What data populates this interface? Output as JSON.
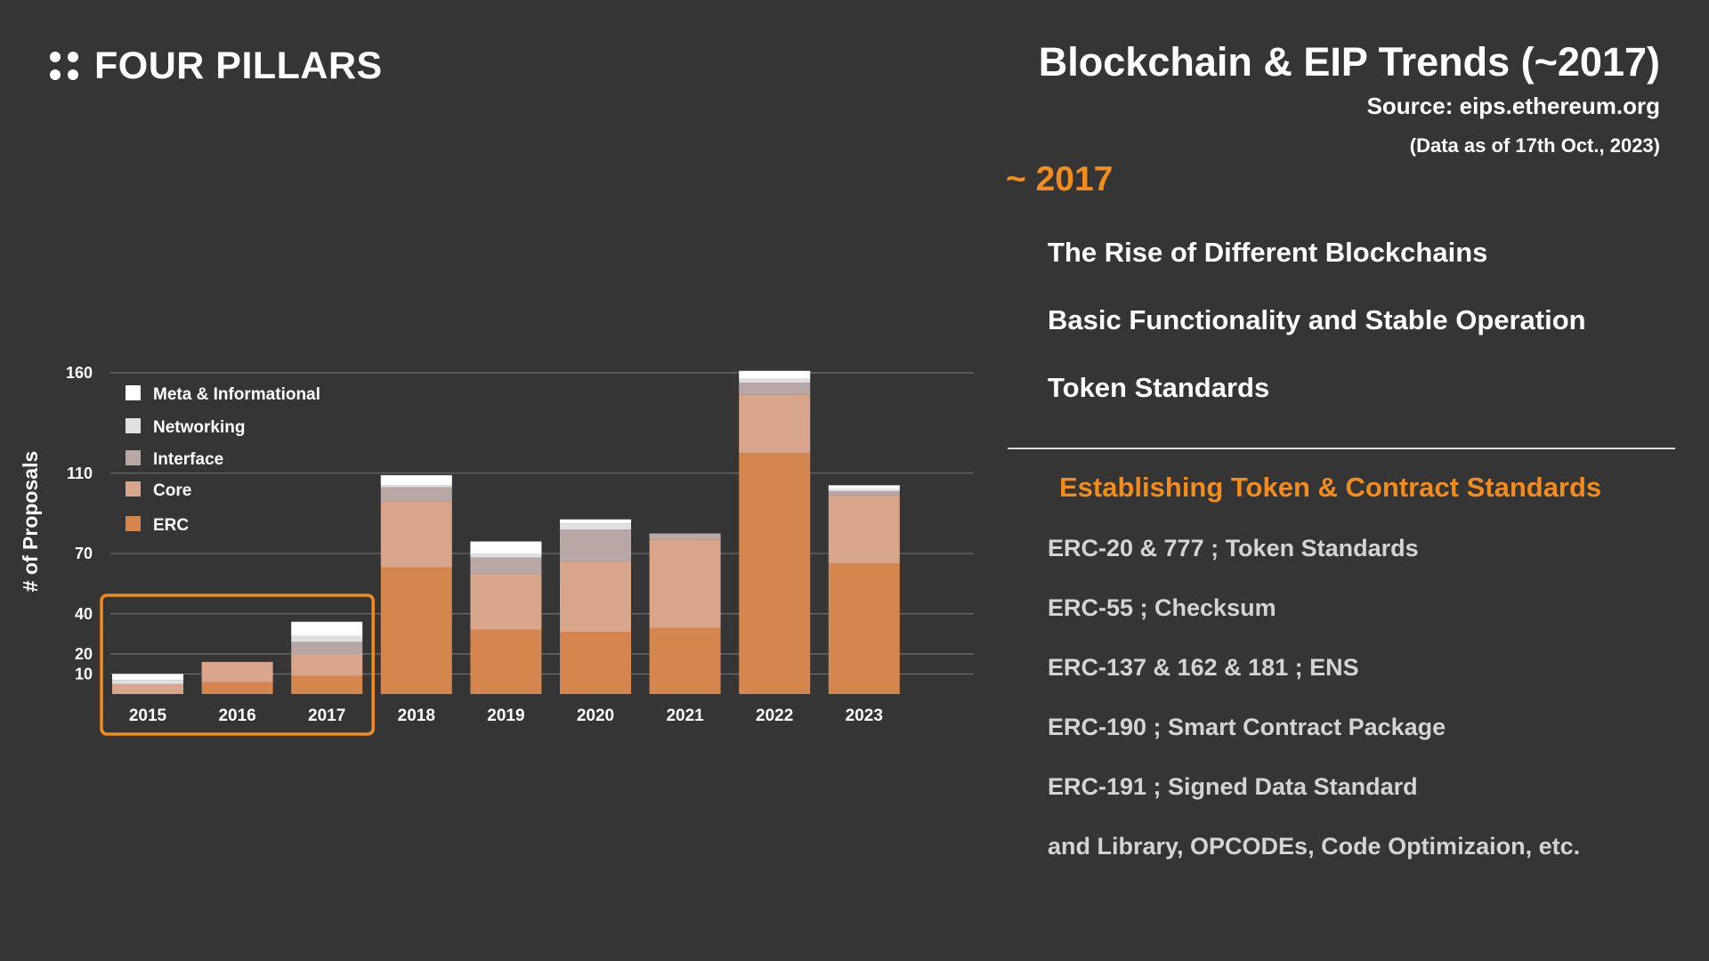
{
  "header": {
    "brand": "FOUR PILLARS",
    "title": "Blockchain & EIP Trends (~2017)",
    "source": "Source: eips.ethereum.org",
    "as_of": "(Data as of 17th Oct., 2023)"
  },
  "era": {
    "label": "~ 2017",
    "themes": [
      "The Rise of Different Blockchains",
      "Basic Functionality and Stable Operation",
      "Token Standards"
    ]
  },
  "standards": {
    "heading": "Establishing Token & Contract Standards",
    "items": [
      "ERC-20 & 777 ; Token Standards",
      "ERC-55 ; Checksum",
      "ERC-137 & 162 & 181 ; ENS",
      "ERC-190 ; Smart Contract Package",
      "ERC-191 ; Signed Data Standard",
      "and Library, OPCODEs, Code Optimizaion, etc."
    ]
  },
  "colors": {
    "highlight": "#f28c1c",
    "background": "#353535"
  },
  "chart_data": {
    "type": "bar",
    "stacked": true,
    "ylabel": "# of Proposals",
    "yticks": [
      10,
      20,
      40,
      70,
      110,
      160
    ],
    "ylim": [
      0,
      160
    ],
    "grid": true,
    "legend": "top-left",
    "categories": [
      "2015",
      "2016",
      "2017",
      "2018",
      "2019",
      "2020",
      "2021",
      "2022",
      "2023"
    ],
    "highlight_categories": [
      "2015",
      "2016",
      "2017"
    ],
    "series": [
      {
        "name": "ERC",
        "color": "#d4864e",
        "values": [
          0,
          6,
          9,
          63,
          32,
          31,
          33,
          120,
          65
        ]
      },
      {
        "name": "Core",
        "color": "#d9a68b",
        "values": [
          5,
          10,
          11,
          33,
          28,
          35,
          44,
          29,
          34
        ]
      },
      {
        "name": "Interface",
        "color": "#b8a7a4",
        "values": [
          0,
          0,
          6,
          7,
          8,
          16,
          3,
          6,
          2
        ]
      },
      {
        "name": "Networking",
        "color": "#e0e0e0",
        "values": [
          2,
          0,
          3,
          1,
          2,
          3,
          0,
          2,
          1
        ]
      },
      {
        "name": "Meta & Informational",
        "color": "#ffffff",
        "values": [
          3,
          0,
          7,
          5,
          6,
          2,
          0,
          4,
          2
        ]
      }
    ]
  }
}
